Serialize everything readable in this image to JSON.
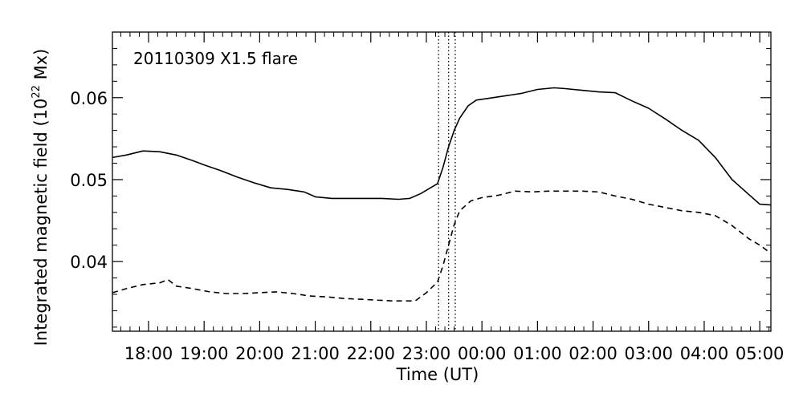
{
  "chart_data": {
    "type": "line",
    "annotation": "20110309 X1.5 flare",
    "xlabel": "Time (UT)",
    "ylabel_main": "Integrated magnetic field (10",
    "ylabel_sup": "22",
    "ylabel_tail": " Mx)",
    "xlim": [
      17.35,
      29.2
    ],
    "ylim": [
      0.0315,
      0.068
    ],
    "x_ticks": [
      {
        "x": 18,
        "label": "18:00"
      },
      {
        "x": 19,
        "label": "19:00"
      },
      {
        "x": 20,
        "label": "20:00"
      },
      {
        "x": 21,
        "label": "21:00"
      },
      {
        "x": 22,
        "label": "22:00"
      },
      {
        "x": 23,
        "label": "23:00"
      },
      {
        "x": 24,
        "label": "00:00"
      },
      {
        "x": 25,
        "label": "01:00"
      },
      {
        "x": 26,
        "label": "02:00"
      },
      {
        "x": 27,
        "label": "03:00"
      },
      {
        "x": 28,
        "label": "04:00"
      },
      {
        "x": 29,
        "label": "05:00"
      }
    ],
    "y_ticks": [
      {
        "y": 0.04,
        "label": "0.04"
      },
      {
        "y": 0.05,
        "label": "0.05"
      },
      {
        "y": 0.06,
        "label": "0.06"
      }
    ],
    "vlines": [
      23.22,
      23.4,
      23.52
    ],
    "series": [
      {
        "style": "solid",
        "x": [
          17.35,
          17.6,
          17.9,
          18.2,
          18.5,
          18.8,
          19.0,
          19.3,
          19.6,
          19.9,
          20.2,
          20.5,
          20.8,
          21.0,
          21.3,
          21.6,
          21.9,
          22.2,
          22.5,
          22.7,
          22.9,
          23.05,
          23.2,
          23.3,
          23.4,
          23.5,
          23.6,
          23.75,
          23.9,
          24.1,
          24.4,
          24.7,
          25.0,
          25.3,
          25.5,
          25.8,
          26.1,
          26.4,
          26.7,
          27.0,
          27.3,
          27.6,
          27.9,
          28.2,
          28.5,
          28.8,
          29.0,
          29.2
        ],
        "y": [
          0.0527,
          0.053,
          0.0535,
          0.0534,
          0.053,
          0.0523,
          0.0518,
          0.0511,
          0.0503,
          0.0496,
          0.049,
          0.0488,
          0.0485,
          0.0479,
          0.0477,
          0.0477,
          0.0477,
          0.0477,
          0.0476,
          0.0477,
          0.0483,
          0.0489,
          0.0495,
          0.0515,
          0.054,
          0.056,
          0.0575,
          0.059,
          0.0597,
          0.0599,
          0.0602,
          0.0605,
          0.061,
          0.0612,
          0.0611,
          0.0609,
          0.0607,
          0.0606,
          0.0596,
          0.0587,
          0.0574,
          0.056,
          0.0548,
          0.0527,
          0.05,
          0.0482,
          0.047,
          0.0469
        ]
      },
      {
        "style": "dashed",
        "x": [
          17.35,
          17.6,
          17.9,
          18.2,
          18.35,
          18.5,
          18.8,
          19.1,
          19.4,
          19.7,
          20.0,
          20.3,
          20.6,
          20.9,
          21.2,
          21.5,
          21.8,
          22.1,
          22.4,
          22.6,
          22.8,
          23.0,
          23.2,
          23.3,
          23.4,
          23.5,
          23.6,
          23.8,
          24.0,
          24.3,
          24.6,
          24.9,
          25.2,
          25.5,
          25.8,
          26.1,
          26.4,
          26.7,
          27.0,
          27.3,
          27.6,
          27.9,
          28.2,
          28.5,
          28.8,
          29.0,
          29.2
        ],
        "y": [
          0.0362,
          0.0367,
          0.0372,
          0.0374,
          0.0378,
          0.037,
          0.0367,
          0.0363,
          0.0361,
          0.0361,
          0.0362,
          0.0363,
          0.0361,
          0.0358,
          0.0357,
          0.0355,
          0.0354,
          0.0353,
          0.0352,
          0.0352,
          0.0352,
          0.0362,
          0.0375,
          0.0395,
          0.042,
          0.0445,
          0.0462,
          0.0474,
          0.0478,
          0.0481,
          0.0486,
          0.0485,
          0.0486,
          0.0486,
          0.0486,
          0.0485,
          0.048,
          0.0476,
          0.047,
          0.0466,
          0.0462,
          0.046,
          0.0456,
          0.0444,
          0.0428,
          0.042,
          0.041
        ]
      }
    ]
  }
}
